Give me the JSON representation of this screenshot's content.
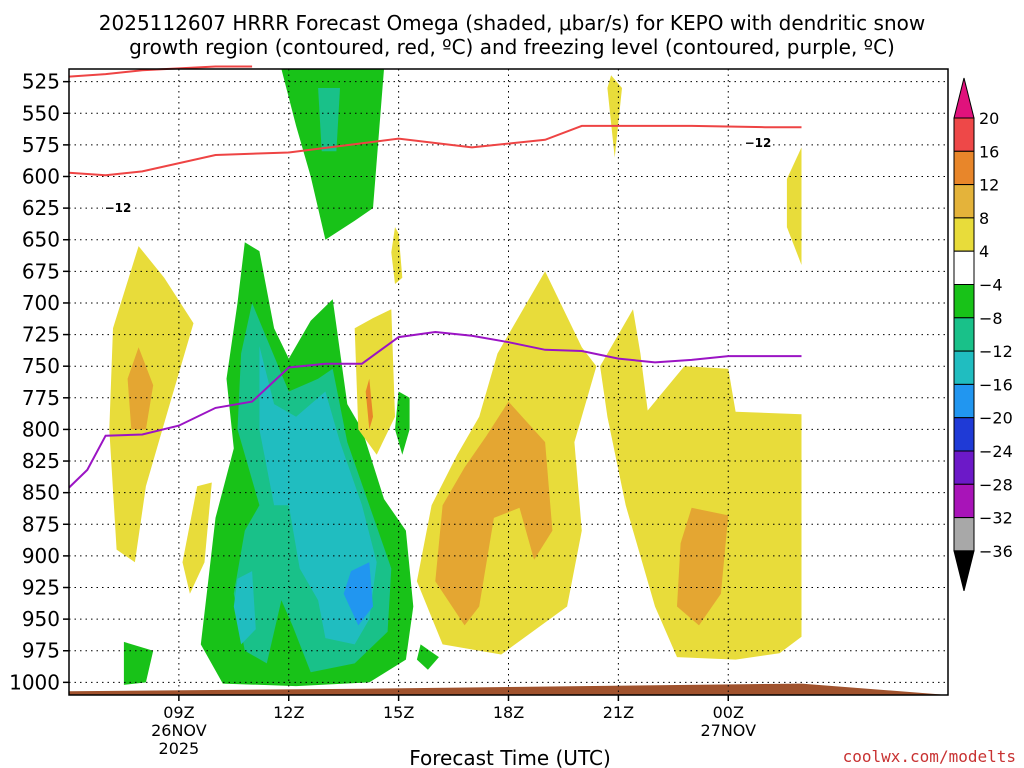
{
  "chart_data": {
    "type": "heatmap",
    "title_line1": "2025112607 HRRR Forecast Omega (shaded, μbar/s) for KEPO with dendritic snow",
    "title_line2": "growth region (contoured, red, ºC) and freezing level (contoured, purple, ºC)",
    "xlabel": "Forecast Time (UTC)",
    "credit": "coolwx.com/modelts",
    "x_range": [
      6.0,
      30.0
    ],
    "y_range": [
      515,
      1010
    ],
    "x_ticks": [
      {
        "hour": 9,
        "label": "09Z",
        "sub1": "26NOV",
        "sub2": "2025"
      },
      {
        "hour": 12,
        "label": "12Z",
        "sub1": "",
        "sub2": ""
      },
      {
        "hour": 15,
        "label": "15Z",
        "sub1": "",
        "sub2": ""
      },
      {
        "hour": 18,
        "label": "18Z",
        "sub1": "",
        "sub2": ""
      },
      {
        "hour": 21,
        "label": "21Z",
        "sub1": "",
        "sub2": ""
      },
      {
        "hour": 24,
        "label": "00Z",
        "sub1": "27NOV",
        "sub2": ""
      }
    ],
    "y_ticks": [
      525,
      550,
      575,
      600,
      625,
      650,
      675,
      700,
      725,
      750,
      775,
      800,
      825,
      850,
      875,
      900,
      925,
      950,
      975,
      1000
    ],
    "colorbar": {
      "labels": [
        "20",
        "16",
        "12",
        "8",
        "4",
        "−4",
        "−8",
        "−12",
        "−16",
        "−20",
        "−24",
        "−28",
        "−32",
        "−36"
      ],
      "top_arrow_color": "#e0127c",
      "bottom_arrow_color": "#000000",
      "segments": [
        {
          "range": "16 to 20",
          "color": "#ee4848"
        },
        {
          "range": "12 to 16",
          "color": "#e8862a"
        },
        {
          "range": "8 to 12",
          "color": "#e4b33a"
        },
        {
          "range": "4 to 8",
          "color": "#e8dc3a"
        },
        {
          "range": "-4 to 4",
          "color": "#ffffff"
        },
        {
          "range": "-8 to -4",
          "color": "#18c218"
        },
        {
          "range": "-12 to -8",
          "color": "#19c189"
        },
        {
          "range": "-16 to -12",
          "color": "#20bdc0"
        },
        {
          "range": "-20 to -16",
          "color": "#2196f0"
        },
        {
          "range": "-24 to -20",
          "color": "#1f3ad6"
        },
        {
          "range": "-28 to -24",
          "color": "#6c19c8"
        },
        {
          "range": "-32 to -28",
          "color": "#a814b8"
        },
        {
          "range": "-36 to -32",
          "color": "#a8a8a8"
        }
      ]
    },
    "colors": {
      "dgz_line": "#ee4444",
      "freezing_line": "#9b14c4",
      "ground": "#a0522d",
      "credit": "#c83232",
      "ascent_weak": "#18c218",
      "ascent_moderate": "#19c189",
      "ascent_strong": "#20bdc0",
      "ascent_max": "#2196f0",
      "descent_weak": "#e8dc3a",
      "descent_moderate": "#e4a632",
      "descent_strong": "#e8862a"
    },
    "dgz_label": "−12",
    "dgz_level_12C": [
      [
        6.0,
        597
      ],
      [
        7.0,
        599
      ],
      [
        8.0,
        596
      ],
      [
        10.0,
        583
      ],
      [
        12.0,
        581
      ],
      [
        15.0,
        570
      ],
      [
        17.0,
        577
      ],
      [
        19.0,
        571
      ],
      [
        20.0,
        560
      ],
      [
        22.0,
        560
      ],
      [
        23.0,
        560
      ],
      [
        25.0,
        561
      ],
      [
        26.0,
        561
      ]
    ],
    "dgz_upper_segment": [
      [
        6.0,
        521
      ],
      [
        7.0,
        519
      ],
      [
        8.0,
        516
      ],
      [
        10.0,
        513
      ],
      [
        11.0,
        513
      ]
    ],
    "freezing_level": [
      [
        6.0,
        846
      ],
      [
        6.5,
        832
      ],
      [
        7.0,
        805
      ],
      [
        8.0,
        804
      ],
      [
        9.0,
        797
      ],
      [
        10.0,
        783
      ],
      [
        11.0,
        778
      ],
      [
        12.0,
        751
      ],
      [
        13.0,
        748
      ],
      [
        14.0,
        748
      ],
      [
        15.0,
        727
      ],
      [
        16.0,
        723
      ],
      [
        17.0,
        726
      ],
      [
        18.0,
        731
      ],
      [
        19.0,
        737
      ],
      [
        20.0,
        738
      ],
      [
        21.0,
        744
      ],
      [
        22.0,
        747
      ],
      [
        23.0,
        745
      ],
      [
        24.0,
        742
      ],
      [
        26.0,
        742
      ]
    ],
    "ground_level": [
      [
        6.0,
        1007
      ],
      [
        14.0,
        1005
      ],
      [
        20.0,
        1003
      ],
      [
        26.0,
        1001
      ]
    ],
    "omega_regions": [
      {
        "sign": "ascent",
        "level": "weak",
        "pts": [
          [
            10.8,
            652
          ],
          [
            11.2,
            659
          ],
          [
            11.6,
            720
          ],
          [
            12.0,
            744
          ],
          [
            12.6,
            714
          ],
          [
            13.2,
            697
          ],
          [
            13.6,
            780
          ],
          [
            14.0,
            800
          ],
          [
            14.6,
            855
          ],
          [
            15.2,
            880
          ],
          [
            15.4,
            940
          ],
          [
            15.2,
            982
          ],
          [
            14.2,
            1000
          ],
          [
            12.2,
            1003
          ],
          [
            10.2,
            1001
          ],
          [
            9.6,
            970
          ],
          [
            9.8,
            920
          ],
          [
            10.0,
            870
          ],
          [
            10.5,
            815
          ],
          [
            10.3,
            760
          ],
          [
            10.6,
            700
          ]
        ]
      },
      {
        "sign": "ascent",
        "level": "moderate",
        "pts": [
          [
            11.0,
            700
          ],
          [
            11.6,
            742
          ],
          [
            12.0,
            770
          ],
          [
            12.8,
            760
          ],
          [
            13.2,
            752
          ],
          [
            13.6,
            810
          ],
          [
            14.2,
            860
          ],
          [
            14.8,
            910
          ],
          [
            14.7,
            960
          ],
          [
            13.8,
            985
          ],
          [
            12.6,
            992
          ],
          [
            12.1,
            955
          ],
          [
            11.8,
            935
          ],
          [
            11.4,
            985
          ],
          [
            10.8,
            975
          ],
          [
            10.5,
            930
          ],
          [
            10.8,
            880
          ],
          [
            11.2,
            860
          ],
          [
            10.6,
            800
          ],
          [
            10.7,
            740
          ]
        ]
      },
      {
        "sign": "ascent",
        "level": "strong",
        "pts": [
          [
            11.2,
            734
          ],
          [
            11.6,
            780
          ],
          [
            12.2,
            790
          ],
          [
            13.0,
            770
          ],
          [
            13.4,
            810
          ],
          [
            14.0,
            860
          ],
          [
            14.4,
            905
          ],
          [
            14.2,
            950
          ],
          [
            13.8,
            970
          ],
          [
            13.0,
            965
          ],
          [
            12.8,
            935
          ],
          [
            12.3,
            910
          ],
          [
            12.0,
            860
          ],
          [
            11.6,
            860
          ],
          [
            11.2,
            800
          ]
        ]
      },
      {
        "sign": "ascent",
        "level": "strong",
        "pts": [
          [
            10.6,
            918
          ],
          [
            11.0,
            912
          ],
          [
            11.1,
            958
          ],
          [
            10.7,
            970
          ],
          [
            10.5,
            940
          ]
        ]
      },
      {
        "sign": "ascent",
        "level": "max",
        "pts": [
          [
            13.7,
            912
          ],
          [
            14.2,
            905
          ],
          [
            14.3,
            940
          ],
          [
            13.9,
            955
          ],
          [
            13.5,
            930
          ]
        ]
      },
      {
        "sign": "ascent",
        "level": "weak",
        "pts": [
          [
            11.8,
            515
          ],
          [
            14.6,
            515
          ],
          [
            14.3,
            625
          ],
          [
            13.8,
            635
          ],
          [
            13.0,
            650
          ],
          [
            12.6,
            600
          ],
          [
            12.2,
            560
          ]
        ]
      },
      {
        "sign": "ascent",
        "level": "moderate",
        "pts": [
          [
            12.8,
            530
          ],
          [
            13.4,
            530
          ],
          [
            13.3,
            580
          ],
          [
            12.9,
            580
          ]
        ]
      },
      {
        "sign": "ascent",
        "level": "weak",
        "pts": [
          [
            15.0,
            770
          ],
          [
            15.3,
            775
          ],
          [
            15.3,
            800
          ],
          [
            15.1,
            820
          ],
          [
            14.9,
            800
          ]
        ]
      },
      {
        "sign": "ascent",
        "level": "weak",
        "pts": [
          [
            7.5,
            968
          ],
          [
            8.3,
            975
          ],
          [
            8.1,
            1000
          ],
          [
            7.5,
            1002
          ]
        ]
      },
      {
        "sign": "ascent",
        "level": "weak",
        "pts": [
          [
            15.6,
            970
          ],
          [
            16.1,
            980
          ],
          [
            15.8,
            990
          ],
          [
            15.5,
            982
          ]
        ]
      },
      {
        "sign": "descent",
        "level": "weak",
        "pts": [
          [
            7.9,
            655
          ],
          [
            8.6,
            680
          ],
          [
            9.4,
            716
          ],
          [
            8.7,
            785
          ],
          [
            8.1,
            845
          ],
          [
            7.8,
            905
          ],
          [
            7.3,
            895
          ],
          [
            7.1,
            800
          ],
          [
            7.2,
            720
          ]
        ]
      },
      {
        "sign": "descent",
        "level": "moderate",
        "pts": [
          [
            7.9,
            735
          ],
          [
            8.3,
            765
          ],
          [
            8.1,
            800
          ],
          [
            7.7,
            800
          ],
          [
            7.6,
            760
          ]
        ]
      },
      {
        "sign": "descent",
        "level": "weak",
        "pts": [
          [
            9.5,
            845
          ],
          [
            9.9,
            842
          ],
          [
            9.7,
            905
          ],
          [
            9.3,
            930
          ],
          [
            9.1,
            905
          ]
        ]
      },
      {
        "sign": "descent",
        "level": "weak",
        "pts": [
          [
            14.3,
            712
          ],
          [
            14.8,
            705
          ],
          [
            14.9,
            790
          ],
          [
            14.4,
            820
          ],
          [
            13.9,
            800
          ],
          [
            13.8,
            720
          ]
        ]
      },
      {
        "sign": "descent",
        "level": "strong",
        "pts": [
          [
            14.2,
            760
          ],
          [
            14.3,
            790
          ],
          [
            14.2,
            800
          ],
          [
            14.1,
            770
          ]
        ]
      },
      {
        "sign": "descent",
        "level": "weak",
        "pts": [
          [
            14.9,
            640
          ],
          [
            15.0,
            645
          ],
          [
            15.1,
            680
          ],
          [
            14.9,
            685
          ],
          [
            14.8,
            660
          ]
        ]
      },
      {
        "sign": "descent",
        "level": "weak",
        "pts": [
          [
            19.0,
            675
          ],
          [
            20.0,
            735
          ],
          [
            20.4,
            750
          ],
          [
            19.8,
            810
          ],
          [
            20.0,
            880
          ],
          [
            19.6,
            940
          ],
          [
            17.8,
            978
          ],
          [
            16.2,
            970
          ],
          [
            15.5,
            920
          ],
          [
            15.9,
            860
          ],
          [
            16.6,
            820
          ],
          [
            17.2,
            790
          ],
          [
            17.7,
            740
          ]
        ]
      },
      {
        "sign": "descent",
        "level": "moderate",
        "pts": [
          [
            18.0,
            778
          ],
          [
            19.0,
            810
          ],
          [
            19.2,
            880
          ],
          [
            18.7,
            903
          ],
          [
            18.3,
            862
          ],
          [
            17.6,
            870
          ],
          [
            17.2,
            940
          ],
          [
            16.8,
            955
          ],
          [
            16.0,
            920
          ],
          [
            16.2,
            860
          ],
          [
            16.8,
            830
          ],
          [
            17.4,
            805
          ]
        ]
      },
      {
        "sign": "descent",
        "level": "weak",
        "pts": [
          [
            20.8,
            520
          ],
          [
            21.1,
            530
          ],
          [
            20.9,
            585
          ],
          [
            20.7,
            530
          ]
        ]
      },
      {
        "sign": "descent",
        "level": "weak",
        "pts": [
          [
            20.5,
            750
          ],
          [
            21.4,
            705
          ],
          [
            21.6,
            740
          ],
          [
            21.8,
            785
          ],
          [
            22.8,
            750
          ],
          [
            24.0,
            752
          ],
          [
            24.2,
            786
          ],
          [
            26.0,
            788
          ],
          [
            26.0,
            964
          ],
          [
            25.4,
            977
          ],
          [
            24.2,
            982
          ],
          [
            22.6,
            980
          ],
          [
            22.0,
            940
          ],
          [
            21.2,
            860
          ],
          [
            20.7,
            790
          ]
        ]
      },
      {
        "sign": "descent",
        "level": "moderate",
        "pts": [
          [
            23.0,
            862
          ],
          [
            24.0,
            868
          ],
          [
            23.8,
            930
          ],
          [
            23.2,
            955
          ],
          [
            22.6,
            940
          ],
          [
            22.7,
            890
          ]
        ]
      },
      {
        "sign": "descent",
        "level": "weak",
        "pts": [
          [
            25.6,
            602
          ],
          [
            26.0,
            577
          ],
          [
            26.0,
            670
          ],
          [
            25.6,
            640
          ]
        ]
      }
    ]
  }
}
